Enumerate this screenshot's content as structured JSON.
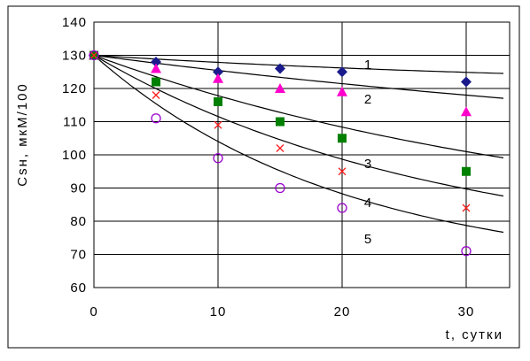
{
  "chart_data": {
    "type": "scatter",
    "ylabel": "Csн, мкМ/100",
    "xlabel": "t, сутки",
    "xlim": [
      0,
      33.5
    ],
    "ylim": [
      60,
      140
    ],
    "x_ticks": [
      0,
      10,
      20,
      30
    ],
    "y_ticks": [
      60,
      70,
      80,
      90,
      100,
      110,
      120,
      130,
      140
    ],
    "grid": true,
    "legend": "none; series numbered 1-5 next to their curves",
    "series": [
      {
        "label": "1",
        "marker": "diamond",
        "color": "#1a1a8c",
        "x": [
          0,
          5,
          10,
          15,
          20,
          30
        ],
        "y": [
          130,
          128,
          125,
          126,
          125,
          122
        ],
        "fit": {
          "asymptote": 120,
          "k": 0.024
        }
      },
      {
        "label": "2",
        "marker": "triangle",
        "color": "#ff00cc",
        "x": [
          0,
          5,
          10,
          15,
          20,
          30
        ],
        "y": [
          130,
          126,
          123,
          120,
          119,
          113
        ],
        "fit": {
          "asymptote": 95,
          "k": 0.014
        }
      },
      {
        "label": "3",
        "marker": "square",
        "color": "#008000",
        "x": [
          0,
          5,
          10,
          15,
          20,
          30
        ],
        "y": [
          130,
          122,
          116,
          110,
          105,
          95
        ],
        "fit": {
          "asymptote": 75,
          "k": 0.025
        }
      },
      {
        "label": "4",
        "marker": "cross",
        "color": "#ff2020",
        "x": [
          0,
          5,
          10,
          15,
          20,
          30
        ],
        "y": [
          130,
          118,
          109,
          102,
          95,
          84
        ],
        "fit": {
          "asymptote": 69,
          "k": 0.036
        }
      },
      {
        "label": "5",
        "marker": "circle",
        "color": "#9900cc",
        "x": [
          0,
          5,
          10,
          15,
          20,
          30
        ],
        "y": [
          130,
          111,
          99,
          90,
          84,
          71
        ],
        "fit": {
          "asymptote": 64,
          "k": 0.05
        }
      }
    ]
  }
}
